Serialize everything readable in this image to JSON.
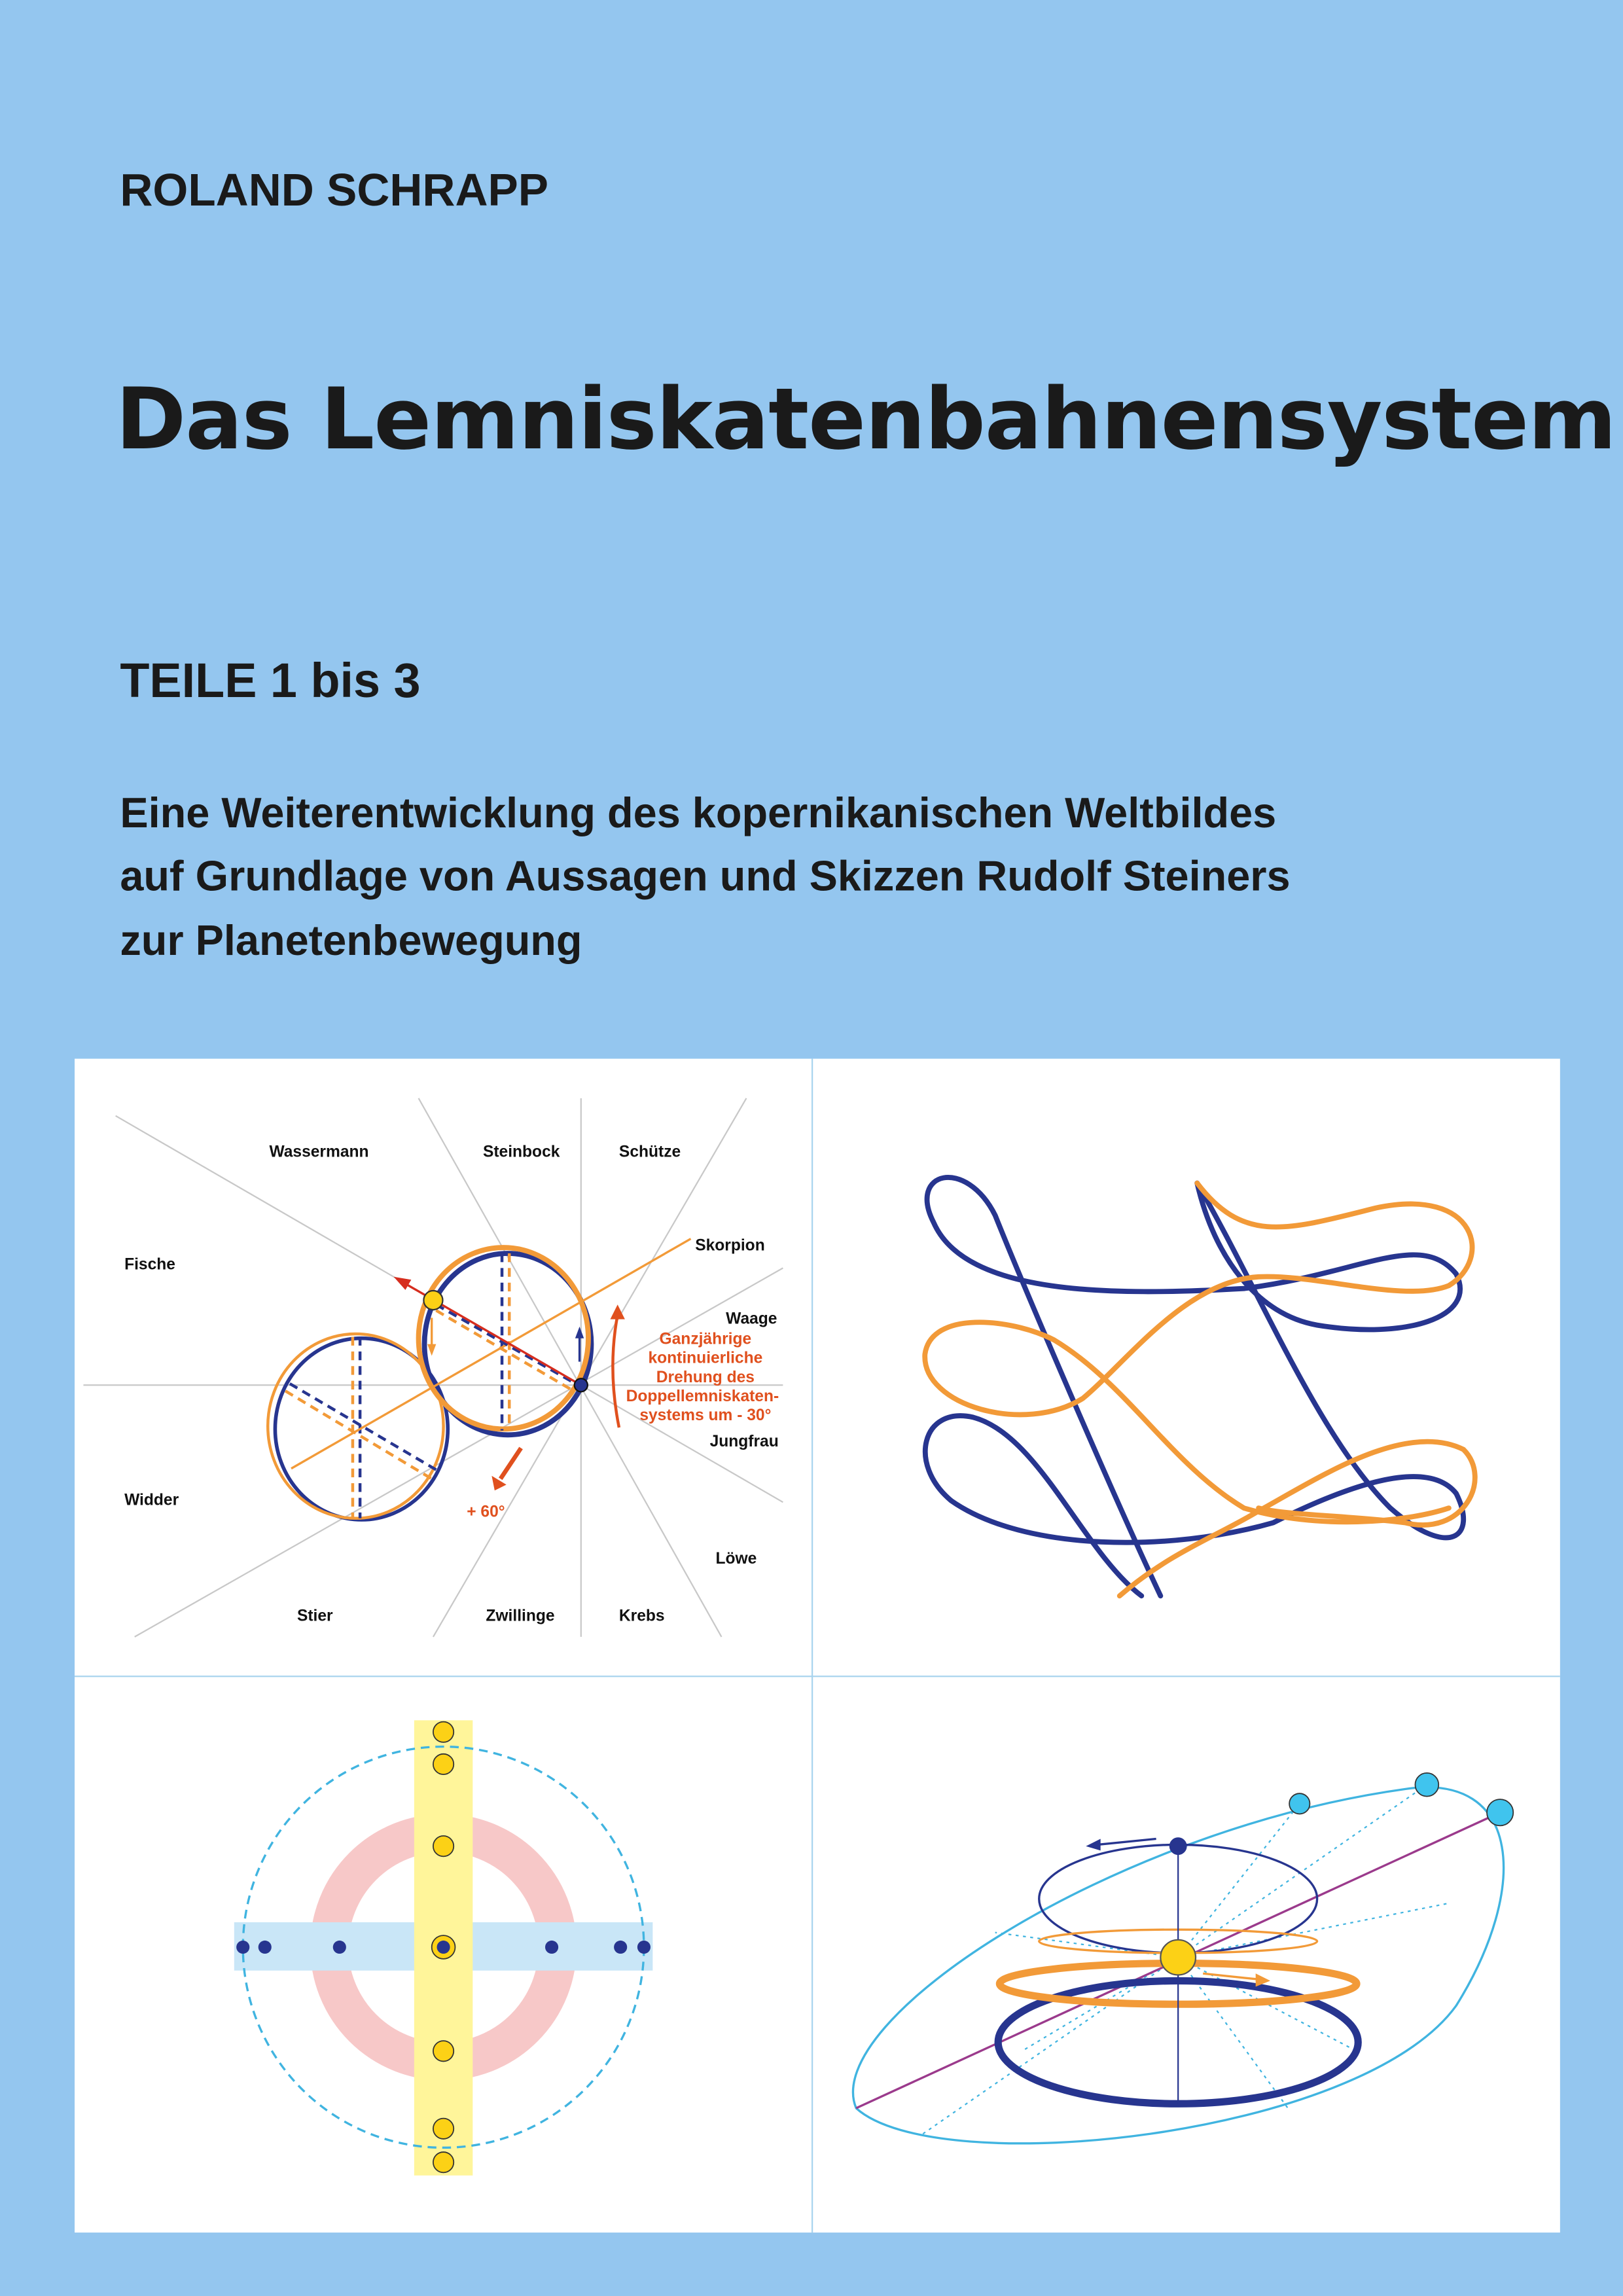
{
  "cover": {
    "author": "ROLAND SCHRAPP",
    "title": "Das Lemniskatenbahnensystem",
    "parts": "TEILE 1 bis 3",
    "subtitle_lines": [
      "Eine Weiterentwicklung des kopernikanischen Weltbildes",
      "auf Grundlage von Aussagen und Skizzen Rudolf Steiners",
      "zur Planetenbewegung"
    ]
  },
  "zodiac_diagram": {
    "signs": {
      "wassermann": "Wassermann",
      "steinbock": "Steinbock",
      "schuetze": "Schütze",
      "fische": "Fische",
      "skorpion": "Skorpion",
      "waage": "Waage",
      "jungfrau": "Jungfrau",
      "widder": "Widder",
      "loewe": "Löwe",
      "stier": "Stier",
      "zwillinge": "Zwillinge",
      "krebs": "Krebs"
    },
    "annotation_lines": [
      "Ganzjährige",
      "kontinuierliche",
      "Drehung des",
      "Doppellemniskaten-",
      "systems um - 30°"
    ],
    "rotation_label": "+ 60°"
  },
  "colors": {
    "background": "#94c6ef",
    "orange": "#f29a38",
    "navy": "#27358f",
    "red_annotation": "#e0501e",
    "sun_yellow": "#fcd116",
    "cyan": "#40b4e0",
    "pink_ring": "#f7c8c8",
    "yellow_band": "#fff59a",
    "light_blue_band": "#c9e6f7"
  }
}
